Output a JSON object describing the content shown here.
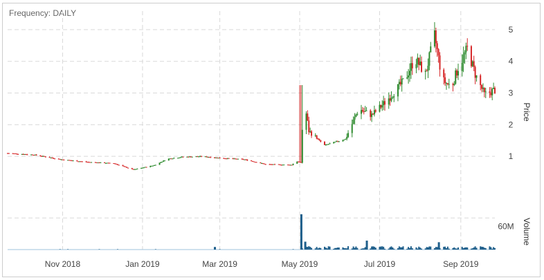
{
  "header": {
    "frequency_label": "Frequency: DAILY"
  },
  "chart_data": {
    "type": "candlestick",
    "frequency": "DAILY",
    "x_axis": {
      "start": "2018-09-20",
      "end": "2019-09-27",
      "tick_labels": [
        "Nov 2018",
        "Jan 2019",
        "Mar 2019",
        "May 2019",
        "Jul 2019",
        "Sep 2019"
      ],
      "grid": true
    },
    "price_axis": {
      "label": "Price",
      "range": [
        0,
        5.5
      ],
      "tick_labels": [
        "1",
        "2",
        "3",
        "4",
        "5"
      ],
      "position": "right",
      "grid": true
    },
    "volume_axis": {
      "label": "Volume",
      "range": [
        0,
        80000000
      ],
      "tick_labels": [
        "60M"
      ],
      "position": "right"
    },
    "colors": {
      "up": "#2e8b2e",
      "down": "#d62728",
      "volume": "#1f5f8b",
      "grid": "#d9d9d9"
    },
    "price_path": [
      [
        "2018-09-20",
        1.1
      ],
      [
        "2018-10-10",
        1.05
      ],
      [
        "2018-10-31",
        0.9
      ],
      [
        "2018-11-20",
        0.82
      ],
      [
        "2018-12-10",
        0.78
      ],
      [
        "2018-12-25",
        0.58
      ],
      [
        "2019-01-10",
        0.72
      ],
      [
        "2019-01-20",
        0.92
      ],
      [
        "2019-01-31",
        0.98
      ],
      [
        "2019-02-15",
        1.0
      ],
      [
        "2019-03-01",
        0.95
      ],
      [
        "2019-03-20",
        0.9
      ],
      [
        "2019-04-05",
        0.75
      ],
      [
        "2019-04-25",
        0.73
      ],
      [
        "2019-04-28",
        0.85
      ],
      [
        "2019-05-02",
        0.8
      ],
      [
        "2019-05-04",
        2.9
      ],
      [
        "2019-05-08",
        1.8
      ],
      [
        "2019-05-20",
        1.35
      ],
      [
        "2019-06-05",
        1.55
      ],
      [
        "2019-06-15",
        2.5
      ],
      [
        "2019-06-25",
        2.3
      ],
      [
        "2019-07-05",
        2.7
      ],
      [
        "2019-07-20",
        3.4
      ],
      [
        "2019-07-28",
        4.1
      ],
      [
        "2019-08-05",
        3.6
      ],
      [
        "2019-08-12",
        4.8
      ],
      [
        "2019-08-18",
        3.4
      ],
      [
        "2019-08-25",
        3.2
      ],
      [
        "2019-08-30",
        3.8
      ],
      [
        "2019-09-06",
        4.4
      ],
      [
        "2019-09-12",
        3.6
      ],
      [
        "2019-09-19",
        2.95
      ],
      [
        "2019-09-27",
        3.1
      ]
    ],
    "volume_spikes": [
      {
        "date": "2019-05-02",
        "value": 67000000
      },
      {
        "date": "2019-05-05",
        "value": 15000000
      },
      {
        "date": "2019-06-21",
        "value": 17000000
      },
      {
        "date": "2019-08-15",
        "value": 14000000
      },
      {
        "date": "2019-02-25",
        "value": 5000000
      }
    ]
  }
}
